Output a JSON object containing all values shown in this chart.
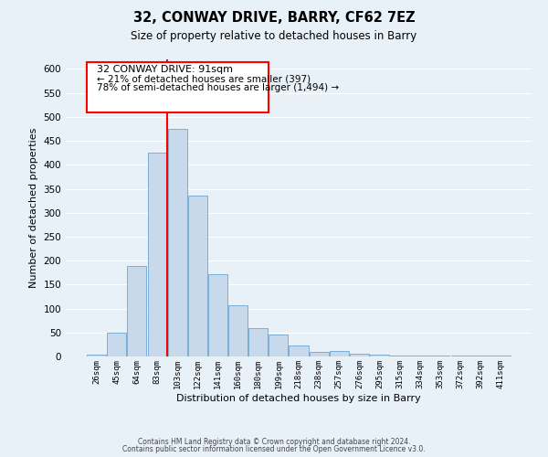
{
  "title": "32, CONWAY DRIVE, BARRY, CF62 7EZ",
  "subtitle": "Size of property relative to detached houses in Barry",
  "xlabel": "Distribution of detached houses by size in Barry",
  "ylabel": "Number of detached properties",
  "bin_labels": [
    "26sqm",
    "45sqm",
    "64sqm",
    "83sqm",
    "103sqm",
    "122sqm",
    "141sqm",
    "160sqm",
    "180sqm",
    "199sqm",
    "218sqm",
    "238sqm",
    "257sqm",
    "276sqm",
    "295sqm",
    "315sqm",
    "334sqm",
    "353sqm",
    "372sqm",
    "392sqm",
    "411sqm"
  ],
  "bar_heights": [
    3,
    50,
    188,
    425,
    475,
    335,
    172,
    107,
    60,
    45,
    22,
    10,
    12,
    6,
    4,
    2,
    1,
    2,
    1,
    1,
    1
  ],
  "bar_color": "#c9d9ec",
  "bar_edge_color": "#7bafd4",
  "background_color": "#e8f0f8",
  "grid_color": "#ffffff",
  "red_line_index": 4,
  "annotation_text_line1": "32 CONWAY DRIVE: 91sqm",
  "annotation_text_line2": "← 21% of detached houses are smaller (397)",
  "annotation_text_line3": "78% of semi-detached houses are larger (1,494) →",
  "ylim": [
    0,
    620
  ],
  "yticks": [
    0,
    50,
    100,
    150,
    200,
    250,
    300,
    350,
    400,
    450,
    500,
    550,
    600
  ],
  "footer_line1": "Contains HM Land Registry data © Crown copyright and database right 2024.",
  "footer_line2": "Contains public sector information licensed under the Open Government Licence v3.0."
}
